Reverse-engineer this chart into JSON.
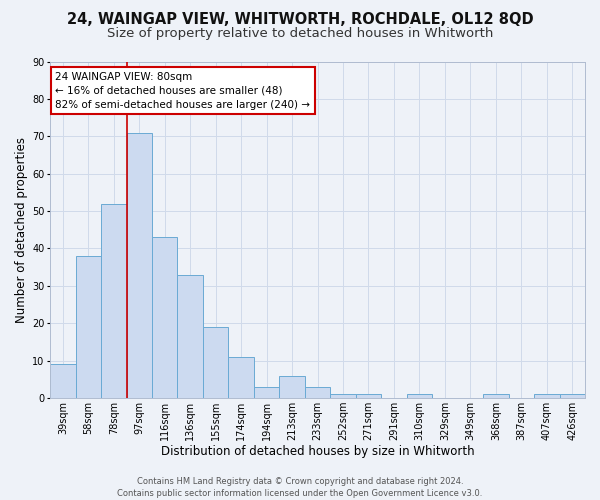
{
  "title1": "24, WAINGAP VIEW, WHITWORTH, ROCHDALE, OL12 8QD",
  "title2": "Size of property relative to detached houses in Whitworth",
  "xlabel": "Distribution of detached houses by size in Whitworth",
  "ylabel": "Number of detached properties",
  "categories": [
    "39sqm",
    "58sqm",
    "78sqm",
    "97sqm",
    "116sqm",
    "136sqm",
    "155sqm",
    "174sqm",
    "194sqm",
    "213sqm",
    "233sqm",
    "252sqm",
    "271sqm",
    "291sqm",
    "310sqm",
    "329sqm",
    "349sqm",
    "368sqm",
    "387sqm",
    "407sqm",
    "426sqm"
  ],
  "values": [
    9,
    38,
    52,
    71,
    43,
    33,
    19,
    11,
    3,
    6,
    3,
    1,
    1,
    0,
    1,
    0,
    0,
    1,
    0,
    1,
    1
  ],
  "bar_color": "#ccdaf0",
  "bar_edge_color": "#6aaad4",
  "grid_color": "#d0daea",
  "bg_color": "#eef2f8",
  "red_line_x": 2.5,
  "annotation_text": "24 WAINGAP VIEW: 80sqm\n← 16% of detached houses are smaller (48)\n82% of semi-detached houses are larger (240) →",
  "annotation_box_color": "#ffffff",
  "annotation_box_edge": "#cc0000",
  "footer_text": "Contains HM Land Registry data © Crown copyright and database right 2024.\nContains public sector information licensed under the Open Government Licence v3.0.",
  "ylim": [
    0,
    90
  ],
  "title1_fontsize": 10.5,
  "title2_fontsize": 9.5,
  "xlabel_fontsize": 8.5,
  "ylabel_fontsize": 8.5,
  "tick_fontsize": 7,
  "footer_fontsize": 6
}
